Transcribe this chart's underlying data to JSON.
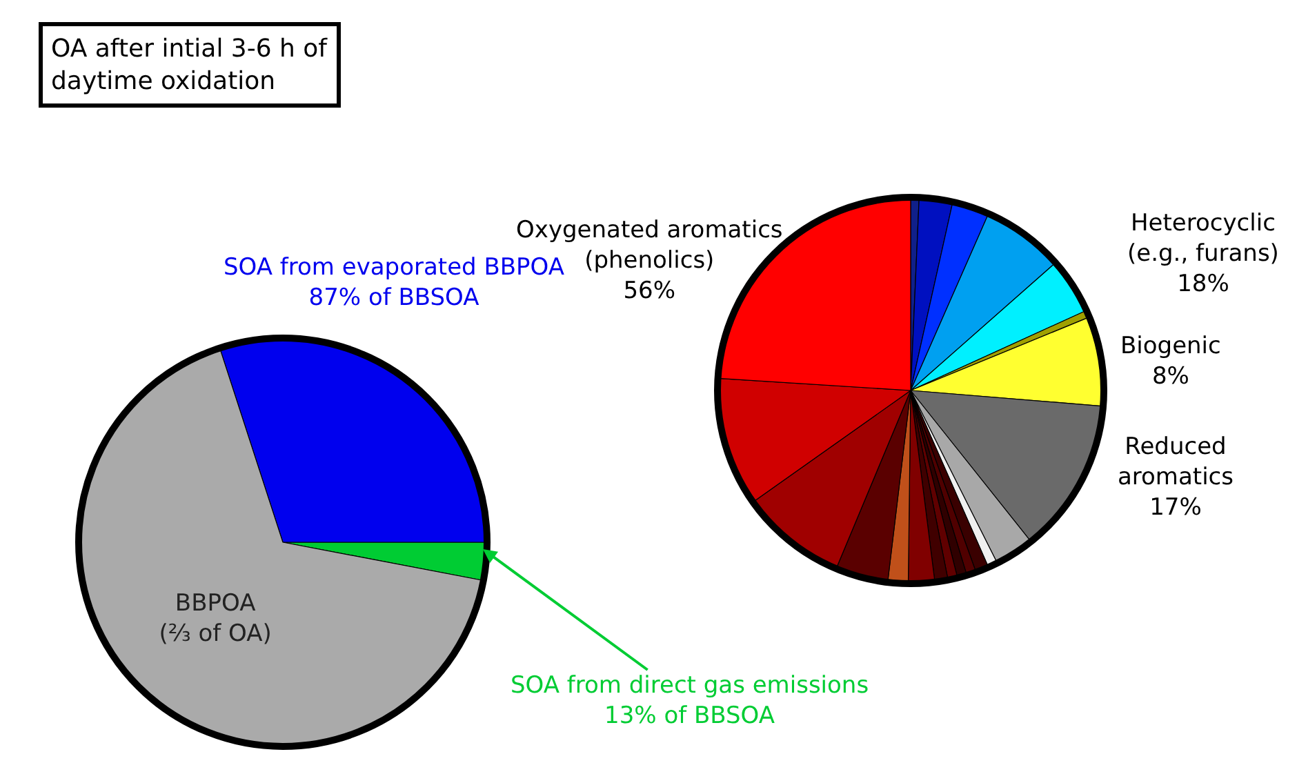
{
  "chart_data": [
    {
      "type": "pie",
      "title": "OA after intial 3-6 h of\ndaytime oxidation",
      "categories": [
        "SOA from direct gas emissions\n13% of BBSOA",
        "SOA from evaporated BBPOA\n87% of BBSOA",
        "BBPOA\n(⅔ of OA)"
      ],
      "values": [
        3,
        30,
        67
      ],
      "colors": [
        "#00cc33",
        "#0000ee",
        "#aaaaaa"
      ]
    },
    {
      "type": "pie",
      "categories": [
        null,
        null,
        null,
        null,
        null,
        null,
        null,
        null,
        null,
        null,
        null,
        null,
        null,
        null,
        null,
        null,
        null,
        null,
        null,
        null,
        null
      ],
      "values": [
        0.7,
        2.8,
        3.1,
        6.9,
        4.7,
        0.6,
        7.5,
        13.0,
        3.3,
        0.8,
        1.1,
        0.8,
        0.8,
        0.8,
        1.1,
        2.2,
        1.7,
        4.4,
        8.9,
        10.8,
        24.0
      ],
      "colors": [
        "#10208a",
        "#0010c0",
        "#0030ff",
        "#00a0f0",
        "#00f0ff",
        "#a0a000",
        "#ffff30",
        "#6a6a6a",
        "#a8a8a8",
        "#f0f0f0",
        "#3a0000",
        "#500000",
        "#300000",
        "#600000",
        "#400000",
        "#800000",
        "#c0501a",
        "#5a0000",
        "#a00000",
        "#d00000",
        "#ff0000"
      ],
      "annotations": [
        "Oxygenated aromatics\n(phenolics)\n56%",
        "Heterocyclic\n(e.g., furans)\n18%",
        "Biogenic\n8%",
        "Reduced\naromatics\n17%"
      ]
    }
  ]
}
